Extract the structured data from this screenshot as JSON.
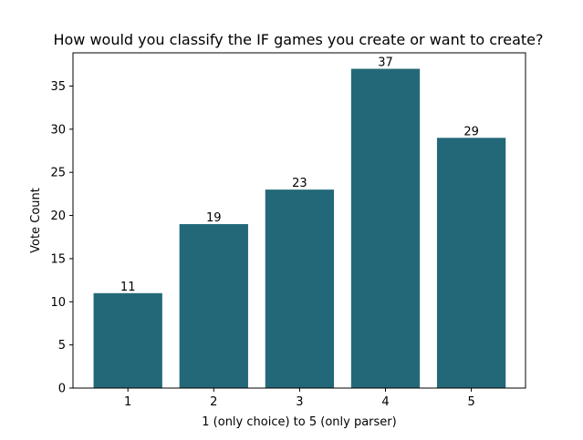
{
  "chart_data": {
    "type": "bar",
    "title": "How would you classify the IF games you create or want to create?",
    "xlabel": "1 (only choice) to 5 (only parser)",
    "ylabel": "Vote Count",
    "categories": [
      "1",
      "2",
      "3",
      "4",
      "5"
    ],
    "values": [
      11,
      19,
      23,
      37,
      29
    ],
    "data_labels": [
      "11",
      "19",
      "23",
      "37",
      "29"
    ],
    "yticks": [
      0,
      5,
      10,
      15,
      20,
      25,
      30,
      35
    ],
    "ylim": [
      0,
      38.85
    ],
    "grid": false,
    "bar_color": "#236879"
  }
}
